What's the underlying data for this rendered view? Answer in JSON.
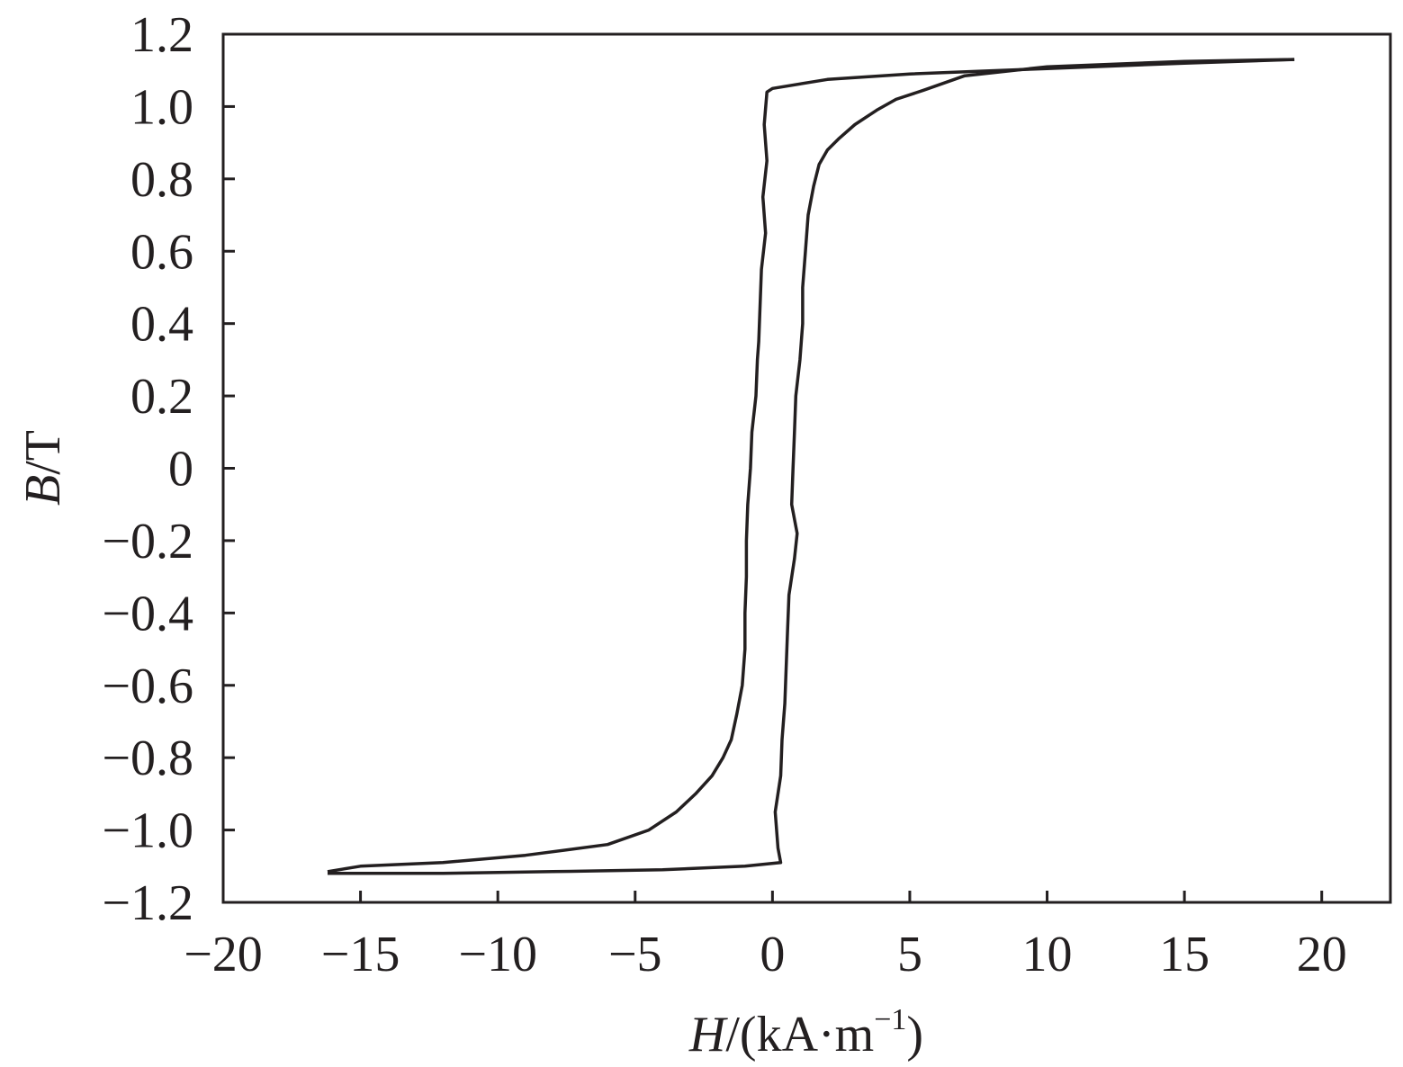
{
  "chart_data": {
    "type": "line",
    "title": "",
    "xlabel": {
      "italic": "H",
      "rest": "/(kA·m",
      "sup": "−1",
      "close": ")"
    },
    "ylabel": {
      "italic": "B",
      "rest": "/T"
    },
    "xlim": [
      -20,
      22.5
    ],
    "ylim": [
      -1.2,
      1.2
    ],
    "xticks": [
      -20,
      -15,
      -10,
      -5,
      0,
      5,
      10,
      15,
      20
    ],
    "xtick_labels": [
      "−20",
      "−15",
      "−10",
      "−5",
      "0",
      "5",
      "10",
      "15",
      "20"
    ],
    "yticks": [
      1.2,
      1.0,
      0.8,
      0.6,
      0.4,
      0.2,
      0,
      -0.2,
      -0.4,
      -0.6,
      -0.8,
      -1.0,
      -1.2
    ],
    "ytick_labels": [
      "1.2",
      "1.0",
      "0.8",
      "0.6",
      "0.4",
      "0.2",
      "0",
      "−0.2",
      "−0.4",
      "−0.6",
      "−0.8",
      "−1.0",
      "−1.2"
    ],
    "grid": false,
    "colors": {
      "line": "#231f20",
      "axis": "#231f20"
    },
    "series": [
      {
        "descending_branch": [
          [
            19.0,
            1.13
          ],
          [
            15.0,
            1.12
          ],
          [
            10.0,
            1.105
          ],
          [
            5.0,
            1.09
          ],
          [
            2.0,
            1.075
          ],
          [
            0.0,
            1.05
          ],
          [
            -0.2,
            1.04
          ],
          [
            -0.3,
            0.95
          ],
          [
            -0.2,
            0.85
          ],
          [
            -0.35,
            0.75
          ],
          [
            -0.25,
            0.65
          ],
          [
            -0.4,
            0.55
          ],
          [
            -0.45,
            0.45
          ],
          [
            -0.5,
            0.35
          ],
          [
            -0.55,
            0.3
          ],
          [
            -0.6,
            0.2
          ],
          [
            -0.75,
            0.1
          ],
          [
            -0.8,
            0.0
          ],
          [
            -0.9,
            -0.1
          ],
          [
            -0.95,
            -0.2
          ],
          [
            -0.95,
            -0.3
          ],
          [
            -1.0,
            -0.4
          ],
          [
            -1.0,
            -0.5
          ],
          [
            -1.1,
            -0.6
          ],
          [
            -1.3,
            -0.68
          ],
          [
            -1.5,
            -0.75
          ],
          [
            -1.8,
            -0.8
          ],
          [
            -2.2,
            -0.85
          ],
          [
            -2.8,
            -0.9
          ],
          [
            -3.5,
            -0.95
          ],
          [
            -4.5,
            -1.0
          ],
          [
            -6.0,
            -1.04
          ],
          [
            -9.0,
            -1.07
          ],
          [
            -12.0,
            -1.09
          ],
          [
            -15.0,
            -1.1
          ],
          [
            -16.2,
            -1.115
          ]
        ]
      },
      {
        "ascending_branch": [
          [
            -16.2,
            -1.12
          ],
          [
            -12.0,
            -1.12
          ],
          [
            -8.0,
            -1.115
          ],
          [
            -4.0,
            -1.11
          ],
          [
            -1.0,
            -1.1
          ],
          [
            0.3,
            -1.09
          ],
          [
            0.2,
            -1.05
          ],
          [
            0.1,
            -0.95
          ],
          [
            0.3,
            -0.85
          ],
          [
            0.35,
            -0.75
          ],
          [
            0.45,
            -0.65
          ],
          [
            0.5,
            -0.55
          ],
          [
            0.55,
            -0.45
          ],
          [
            0.6,
            -0.35
          ],
          [
            0.8,
            -0.25
          ],
          [
            0.9,
            -0.18
          ],
          [
            0.7,
            -0.1
          ],
          [
            0.75,
            0.0
          ],
          [
            0.8,
            0.1
          ],
          [
            0.85,
            0.2
          ],
          [
            1.0,
            0.3
          ],
          [
            1.1,
            0.4
          ],
          [
            1.1,
            0.5
          ],
          [
            1.2,
            0.6
          ],
          [
            1.3,
            0.7
          ],
          [
            1.5,
            0.78
          ],
          [
            1.7,
            0.84
          ],
          [
            2.0,
            0.88
          ],
          [
            2.4,
            0.91
          ],
          [
            3.0,
            0.95
          ],
          [
            3.8,
            0.99
          ],
          [
            4.5,
            1.02
          ],
          [
            5.5,
            1.045
          ],
          [
            7.0,
            1.085
          ],
          [
            10.0,
            1.11
          ],
          [
            15.0,
            1.125
          ],
          [
            19.0,
            1.13
          ]
        ]
      }
    ]
  }
}
